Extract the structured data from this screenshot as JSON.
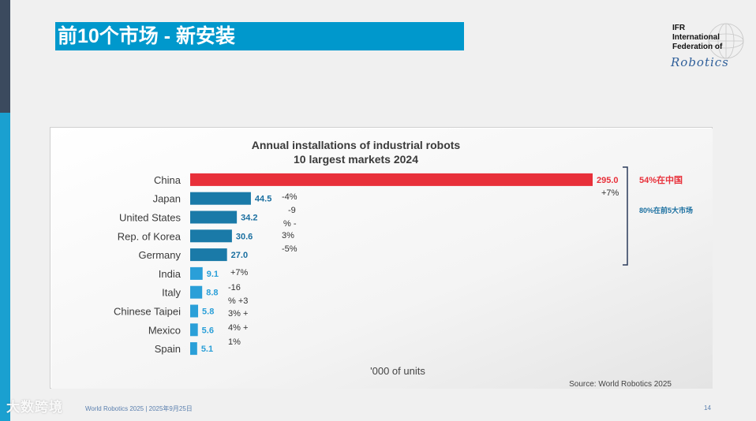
{
  "slide": {
    "title": "前10个市场 - 新安装",
    "footer": "World Robotics 2025 | 2025年9月25日",
    "page_number": "14",
    "watermark": "大数跨境"
  },
  "logo": {
    "line1": "IFR",
    "line2": "International",
    "line3": "Federation of",
    "script": "Robotics"
  },
  "colors": {
    "china_bar": "#e8303a",
    "top5_bar": "#1a7aa8",
    "other_bar": "#2a9fd8",
    "top5_label": "#1a6fa0",
    "other_label": "#2a9fd8",
    "china_label": "#e8303a",
    "title_bar": "#0098cc"
  },
  "chart_data": {
    "type": "bar",
    "orientation": "horizontal",
    "title": "Annual installations of industrial robots",
    "subtitle": "10 largest markets 2024",
    "unit_label": "'000 of units",
    "source": "Source: World Robotics 2025",
    "categories": [
      "China",
      "Japan",
      "United States",
      "Rep. of Korea",
      "Germany",
      "India",
      "Italy",
      "Chinese Taipei",
      "Mexico",
      "Spain"
    ],
    "values": [
      295.0,
      44.5,
      34.2,
      30.6,
      27.0,
      9.1,
      8.8,
      5.8,
      5.6,
      5.1
    ],
    "value_labels": [
      "295.0",
      "44.5",
      "34.2",
      "30.6",
      "27.0",
      "9.1",
      "8.8",
      "5.8",
      "5.6",
      "5.1"
    ],
    "groups": [
      "china",
      "top5",
      "top5",
      "top5",
      "top5",
      "other",
      "other",
      "other",
      "other",
      "other"
    ],
    "xlim": [
      0,
      295.0
    ],
    "annotations": {
      "china_change": "+7%",
      "top5_changes": [
        "-4%",
        "-9",
        "% -",
        "3%",
        "-5%"
      ],
      "other_changes": [
        "+7%",
        "-16",
        "% +3",
        "3% +",
        "4% +",
        "1%"
      ],
      "china_share": "54%在中国",
      "top5_share": "80%在前5大市场"
    }
  }
}
